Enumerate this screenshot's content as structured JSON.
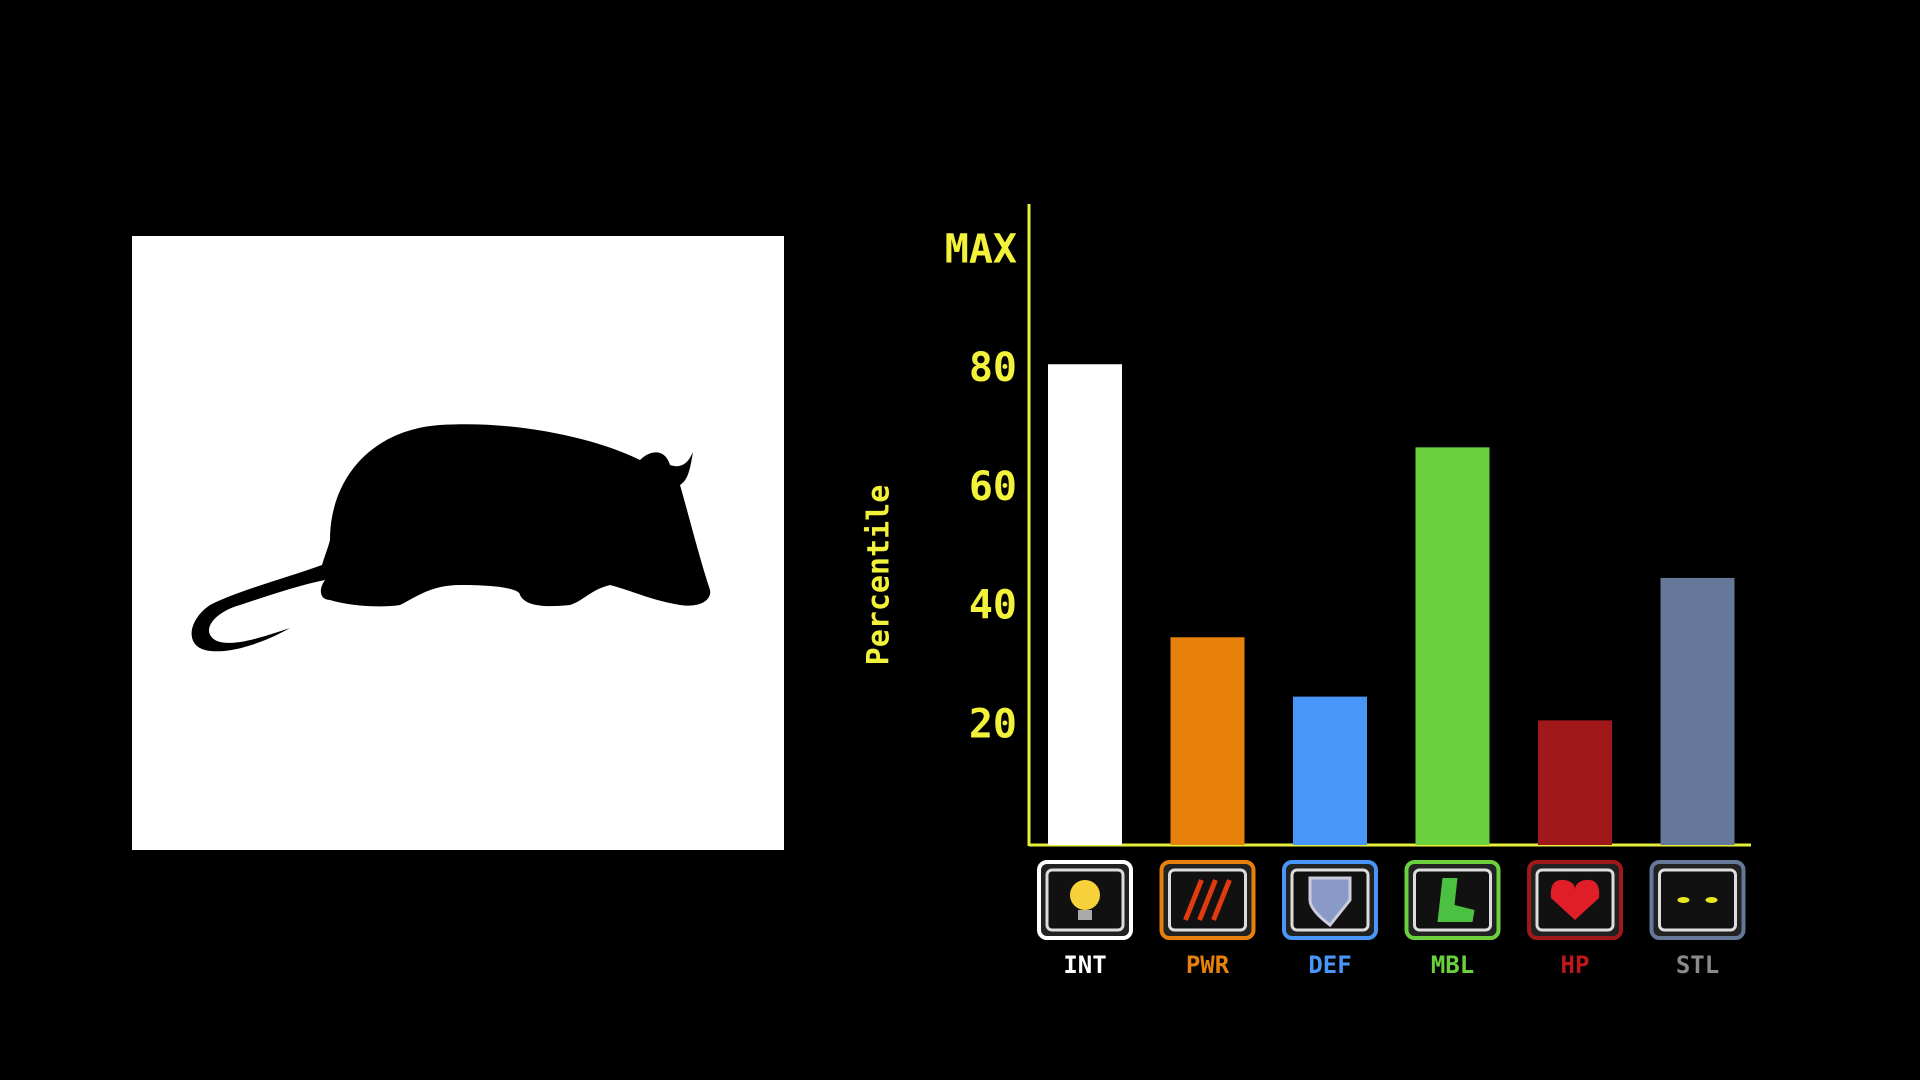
{
  "chart_data": {
    "type": "bar",
    "y_label": "Percentile",
    "categories": [
      "INT",
      "PWR",
      "DEF",
      "MBL",
      "HP",
      "STL"
    ],
    "values": [
      81,
      35,
      25,
      67,
      21,
      45
    ],
    "colors": [
      "#ffffff",
      "#e8800c",
      "#4896f8",
      "#6ad03e",
      "#a0181a",
      "#66789a"
    ],
    "label_colors": [
      "#ffffff",
      "#e8800c",
      "#4896f8",
      "#6ad03e",
      "#c01818",
      "#8a8a8a"
    ],
    "axis_color": "#e6f03a",
    "ylim": [
      0,
      108
    ],
    "yticks": [
      20,
      40,
      60,
      80,
      {
        "value": 100,
        "label": "MAX"
      }
    ],
    "grid": false
  }
}
